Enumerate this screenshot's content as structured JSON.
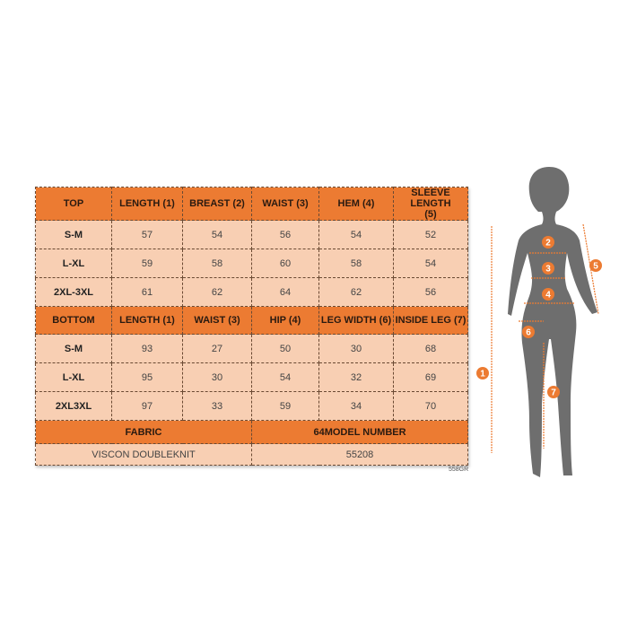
{
  "top": {
    "headers": [
      "TOP",
      "LENGTH (1)",
      "BREAST (2)",
      "WAIST (3)",
      "HEM (4)",
      "SLEEVE LENGTH (5)"
    ],
    "rows": [
      [
        "S-M",
        "57",
        "54",
        "56",
        "54",
        "52"
      ],
      [
        "L-XL",
        "59",
        "58",
        "60",
        "58",
        "54"
      ],
      [
        "2XL-3XL",
        "61",
        "62",
        "64",
        "62",
        "56"
      ]
    ]
  },
  "bottom": {
    "headers": [
      "BOTTOM",
      "LENGTH (1)",
      "WAIST (3)",
      "HIP (4)",
      "LEG WIDTH (6)",
      "INSIDE LEG (7)"
    ],
    "rows": [
      [
        "S-M",
        "93",
        "27",
        "50",
        "30",
        "68"
      ],
      [
        "L-XL",
        "95",
        "30",
        "54",
        "32",
        "69"
      ],
      [
        "2XL3XL",
        "97",
        "33",
        "59",
        "34",
        "70"
      ]
    ]
  },
  "footer": {
    "fabric_label": "FABRIC",
    "model_label": "64MODEL NUMBER",
    "fabric_value": "VISCON DOUBLEKNIT",
    "model_value": "55208"
  },
  "code": "558GR",
  "figure": {
    "markers": [
      "1",
      "2",
      "3",
      "4",
      "5",
      "6",
      "7"
    ],
    "colors": {
      "accent": "#ec7b32",
      "light": "#f8cfb3",
      "silhouette": "#6e6e6e"
    }
  }
}
